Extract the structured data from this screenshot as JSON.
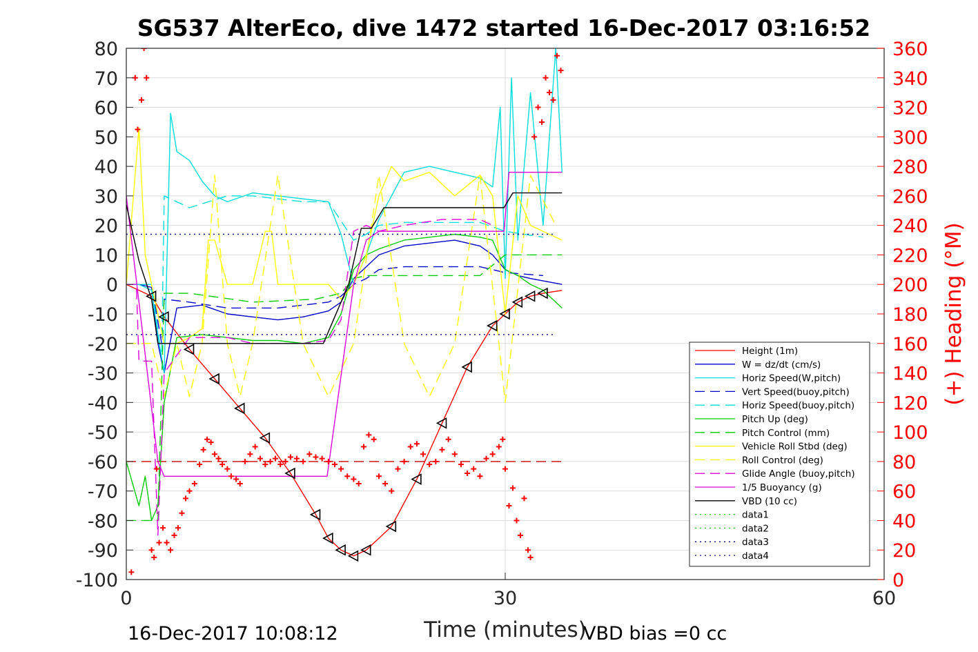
{
  "chart_data": {
    "type": "line",
    "title": "SG537 AlterEco, dive 1472 started 16-Dec-2017 03:16:52",
    "xlabel": "Time (minutes)",
    "ylabel_right": "(+) Heading (°M)",
    "footer_left": "16-Dec-2017 10:08:12",
    "footer_right": "VBD bias =0 cc",
    "xlim": [
      0,
      60
    ],
    "ylim": [
      -100,
      80
    ],
    "y2lim": [
      0,
      360
    ],
    "x_ticks": [
      0,
      30,
      60
    ],
    "y_ticks": [
      80,
      70,
      60,
      50,
      40,
      30,
      20,
      10,
      0,
      -10,
      -20,
      -30,
      -40,
      -50,
      -60,
      -70,
      -80,
      -90,
      -100
    ],
    "y2_ticks": [
      360,
      340,
      320,
      300,
      280,
      260,
      240,
      220,
      200,
      180,
      160,
      140,
      120,
      100,
      80,
      60,
      40,
      20,
      0
    ],
    "grid": true,
    "legend_position": "lower-right",
    "colors": {
      "axis": "#262626",
      "heading": "#ff0000",
      "grid": "#dcdcdc"
    },
    "series": [
      {
        "name": "Height (1m)",
        "color": "#ff0000",
        "dash": "solid",
        "x": [
          0,
          1,
          2,
          3,
          5,
          7,
          9,
          11,
          13,
          15,
          16,
          17,
          18,
          19,
          21,
          23,
          25,
          27,
          29,
          30,
          31,
          32,
          33,
          34.5
        ],
        "y": [
          0,
          -2,
          -4,
          -11,
          -22,
          -32,
          -42,
          -52,
          -64,
          -78,
          -86,
          -90,
          -92,
          -90,
          -82,
          -66,
          -47,
          -28,
          -14,
          -10,
          -6,
          -4,
          -3,
          -2
        ]
      },
      {
        "name": "W = dz/dt (cm/s)",
        "color": "#0000cc",
        "dash": "solid",
        "x": [
          0,
          1,
          2,
          2.5,
          3,
          4,
          6,
          8,
          10,
          12,
          14,
          16,
          17,
          18,
          19,
          20,
          22,
          24,
          26,
          28,
          29,
          30,
          31,
          32,
          34.5
        ],
        "y": [
          0,
          0,
          -1,
          -20,
          -30,
          -8,
          -7,
          -10,
          -11,
          -12,
          -11,
          -9,
          -6,
          2,
          6,
          10,
          13,
          14,
          15,
          13,
          10,
          5,
          3,
          2,
          0
        ]
      },
      {
        "name": "Horiz Speed(W,pitch)",
        "color": "#00dddd",
        "dash": "solid",
        "x": [
          0,
          1,
          2,
          2.6,
          3,
          3.5,
          4,
          5,
          6,
          7,
          8,
          10,
          12,
          14,
          16,
          17,
          18,
          19,
          20,
          22,
          24,
          26,
          28,
          29,
          29.6,
          30,
          30.5,
          31,
          32,
          33,
          34,
          34.5
        ],
        "y": [
          0,
          0,
          -2,
          -20,
          -30,
          58,
          45,
          42,
          35,
          30,
          28,
          31,
          30,
          29,
          28,
          17,
          0,
          10,
          22,
          38,
          40,
          38,
          36,
          33,
          60,
          2,
          70,
          15,
          65,
          20,
          80,
          38
        ]
      },
      {
        "name": "Vert Speed(buoy,pitch)",
        "color": "#0000cc",
        "dash": "dash",
        "x": [
          0,
          2,
          2.8,
          3,
          5,
          8,
          10,
          12,
          14,
          16,
          17,
          18,
          19,
          20,
          22,
          25,
          28,
          30,
          33
        ],
        "y": [
          0,
          0,
          -20,
          -5,
          -6,
          -8,
          -8,
          -8,
          -7,
          -6,
          -4,
          0,
          2,
          5,
          6,
          6,
          6,
          4,
          3
        ]
      },
      {
        "name": "Horiz Speed(buoy,pitch)",
        "color": "#00dddd",
        "dash": "dash",
        "x": [
          0,
          2,
          2.8,
          3,
          5,
          8,
          10,
          12,
          14,
          16,
          18,
          19,
          20,
          22,
          25,
          28,
          30,
          33
        ],
        "y": [
          0,
          0,
          -25,
          30,
          26,
          30,
          30,
          29,
          28,
          28,
          15,
          17,
          20,
          21,
          21,
          21,
          18,
          16
        ]
      },
      {
        "name": "Pitch Up (deg)",
        "color": "#00cc00",
        "dash": "solid",
        "x": [
          0,
          1,
          1.5,
          2,
          2.5,
          3,
          4,
          6,
          8,
          10,
          12,
          14,
          16,
          17,
          18,
          19,
          20,
          22,
          24,
          26,
          28,
          29,
          30,
          31,
          32,
          33,
          34.5
        ],
        "y": [
          -60,
          -75,
          -65,
          -80,
          -75,
          -40,
          -18,
          -17,
          -18,
          -19,
          -19,
          -20,
          -18,
          -10,
          5,
          10,
          12,
          15,
          16,
          17,
          16,
          15,
          5,
          3,
          0,
          -2,
          -8
        ]
      },
      {
        "name": "Pitch Control (mm)",
        "color": "#00cc00",
        "dash": "dash",
        "x": [
          0,
          2.5,
          3,
          5,
          10,
          15,
          17,
          18,
          19,
          22,
          28,
          30,
          34.5
        ],
        "y": [
          -80,
          -80,
          -3,
          -3,
          -6,
          -5,
          -3,
          2,
          3,
          3,
          3,
          10,
          10
        ]
      },
      {
        "name": "Vehicle Roll Stbd (deg)",
        "color": "#ffff00",
        "dash": "solid",
        "x": [
          0,
          1,
          1.5,
          2,
          2.5,
          3,
          4,
          5,
          6,
          6.5,
          7,
          8,
          9,
          10,
          11,
          11.5,
          12,
          13,
          14,
          16,
          17,
          18,
          19,
          20,
          21,
          22,
          24,
          26,
          28,
          29,
          30,
          31,
          32,
          34.5
        ],
        "y": [
          0,
          53,
          10,
          0,
          -10,
          -20,
          -20,
          -18,
          -15,
          15,
          15,
          0,
          0,
          0,
          18,
          18,
          0,
          0,
          0,
          0,
          -5,
          0,
          10,
          30,
          40,
          35,
          38,
          30,
          37,
          30,
          -10,
          30,
          20,
          15
        ]
      },
      {
        "name": "Roll Control (deg)",
        "color": "#ffff00",
        "dash": "dash",
        "x": [
          0,
          2,
          3,
          4,
          5,
          6,
          7,
          8,
          9,
          10,
          12,
          14,
          16,
          18,
          20,
          22,
          24,
          26,
          28,
          29.5,
          30,
          32,
          34
        ],
        "y": [
          -20,
          -20,
          -38,
          -20,
          -38,
          -20,
          37,
          -20,
          -38,
          -20,
          37,
          -20,
          -38,
          -20,
          37,
          -20,
          -38,
          -20,
          37,
          -20,
          -40,
          37,
          20
        ]
      },
      {
        "name": "Glide Angle (buoy,pitch)",
        "color": "#dd00dd",
        "dash": "dash",
        "x": [
          0,
          0.8,
          1,
          2,
          2.5,
          3,
          5,
          8,
          10,
          12,
          14,
          16,
          17,
          18,
          19,
          20,
          22,
          25,
          28,
          29
        ],
        "y": [
          0,
          0,
          -26,
          -26,
          -85,
          -30,
          -18,
          -18,
          -20,
          -20,
          -20,
          -19,
          -12,
          18,
          20,
          18,
          20,
          22,
          22,
          20
        ]
      },
      {
        "name": "1/5 Buoyancy (g)",
        "color": "#dd00dd",
        "dash": "solid",
        "x": [
          0,
          2.5,
          3,
          10,
          15.9,
          18,
          19,
          20,
          29.9,
          30.3,
          34.5
        ],
        "y": [
          30,
          -60,
          -65,
          -65,
          -65,
          0,
          15,
          18,
          18,
          38,
          38
        ]
      },
      {
        "name": "VBD (10 cc)",
        "color": "#000000",
        "dash": "solid",
        "x": [
          0,
          1,
          2,
          2.5,
          15.6,
          17.6,
          18.6,
          19.4,
          20.4,
          29.9,
          30.6,
          34.5
        ],
        "y": [
          27,
          8,
          -5,
          -20,
          -20,
          0,
          19,
          19,
          26,
          26,
          31,
          31
        ]
      },
      {
        "name": "data1",
        "color": "#00cc00",
        "dash": "dot",
        "x": [],
        "y": []
      },
      {
        "name": "data2",
        "color": "#00cc00",
        "dash": "dot",
        "x": [],
        "y": []
      },
      {
        "name": "data3",
        "color": "#00008b",
        "dash": "dot",
        "x": [
          0,
          34
        ],
        "y": [
          17,
          17
        ]
      },
      {
        "name": "data4",
        "color": "#00008b",
        "dash": "dot",
        "x": [
          0,
          34
        ],
        "y": [
          -17,
          -17
        ]
      }
    ],
    "heading_reference": {
      "color": "#cc0000",
      "dash": "dash",
      "heading": 80
    },
    "heading_points": {
      "x": [
        0.4,
        0.7,
        0.9,
        1.2,
        1.4,
        1.6,
        2.0,
        2.2,
        2.4,
        2.6,
        2.9,
        3.2,
        3.5,
        3.8,
        4.1,
        4.4,
        4.7,
        5.0,
        5.4,
        5.8,
        6.1,
        6.4,
        6.7,
        7.0,
        7.3,
        7.6,
        8.0,
        8.3,
        8.7,
        9.0,
        9.4,
        9.8,
        10.2,
        10.6,
        11.0,
        11.4,
        11.8,
        12.2,
        12.6,
        13.0,
        13.5,
        14.0,
        14.5,
        15.0,
        15.5,
        16.0,
        16.5,
        17.0,
        17.5,
        18.0,
        18.4,
        18.8,
        19.2,
        19.6,
        20.0,
        20.5,
        21.0,
        21.5,
        22.0,
        22.5,
        23.0,
        23.5,
        24.0,
        24.5,
        25.0,
        25.5,
        26.0,
        26.5,
        27.0,
        27.5,
        28.0,
        28.5,
        29.0,
        29.5,
        29.8,
        30.0,
        30.3,
        30.6,
        30.9,
        31.2,
        31.5,
        31.8,
        32.0,
        32.3,
        32.6,
        32.9,
        33.2,
        33.5,
        33.8,
        34.1,
        34.4
      ],
      "heading": [
        5,
        340,
        305,
        325,
        360,
        340,
        20,
        15,
        75,
        25,
        35,
        25,
        20,
        30,
        35,
        45,
        55,
        60,
        65,
        78,
        88,
        95,
        93,
        85,
        82,
        78,
        75,
        70,
        68,
        65,
        80,
        85,
        90,
        82,
        78,
        80,
        82,
        78,
        80,
        83,
        82,
        80,
        85,
        83,
        82,
        80,
        78,
        75,
        70,
        68,
        65,
        90,
        98,
        95,
        70,
        65,
        60,
        75,
        80,
        90,
        92,
        85,
        78,
        80,
        88,
        95,
        85,
        78,
        72,
        75,
        70,
        82,
        85,
        90,
        95,
        75,
        50,
        62,
        40,
        30,
        55,
        20,
        15,
        300,
        320,
        310,
        340,
        330,
        325,
        355,
        345
      ]
    }
  }
}
